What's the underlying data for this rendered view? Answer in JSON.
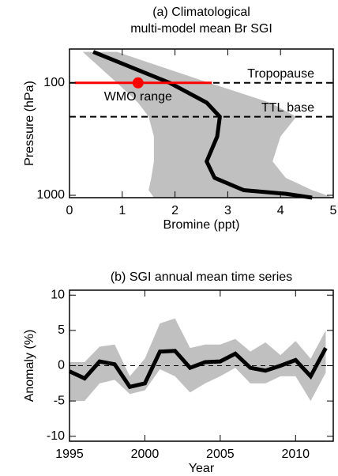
{
  "chart_data": [
    {
      "type": "profile",
      "title": [
        "(a) Climatological",
        "multi-model mean Br SGI"
      ],
      "x_label": "Bromine (ppt)",
      "y_label": "Pressure (hPa)",
      "xlim": [
        0,
        5
      ],
      "xticks": [
        0,
        1,
        2,
        3,
        4,
        5
      ],
      "ylim": [
        50,
        1050
      ],
      "yticks": [
        100,
        1000
      ],
      "log_y": true,
      "y_inverted": true,
      "pressure": [
        53,
        100,
        150,
        200,
        300,
        500,
        700,
        900,
        970,
        1050
      ],
      "values": [
        0.45,
        1.9,
        2.6,
        2.85,
        2.8,
        2.6,
        2.75,
        3.3,
        4.1,
        4.6
      ],
      "color": "#000000",
      "band": {
        "lower": [
          0.25,
          0.9,
          1.3,
          1.5,
          1.6,
          1.6,
          1.55,
          1.5,
          1.55,
          1.6
        ],
        "upper": [
          0.9,
          2.65,
          3.8,
          4.3,
          4.0,
          3.85,
          4.1,
          4.6,
          4.8,
          5.0
        ],
        "color": "#c0c0c0"
      },
      "reference_lines": [
        {
          "label": "Tropopause",
          "value": 100
        },
        {
          "label": "TTL base",
          "value": 200
        }
      ],
      "wmo": {
        "label": "WMO range",
        "range": [
          0.1,
          2.7
        ],
        "value": 1.3,
        "pressure": 100,
        "color": "#ff0000"
      }
    },
    {
      "type": "line",
      "title": "(b) SGI annual mean time series",
      "x_label": "Year",
      "y_label": "Anomaly (%)",
      "xlim": [
        1995,
        2012.5
      ],
      "xticks": [
        1995,
        2000,
        2005,
        2010
      ],
      "ylim": [
        -10.7,
        10.7
      ],
      "yticks": [
        -10,
        -5,
        0,
        5,
        10
      ],
      "zero_line": 0,
      "x": [
        1995,
        1996,
        1997,
        1998,
        1999,
        2000,
        2001,
        2002,
        2003,
        2004,
        2005,
        2006,
        2007,
        2008,
        2009,
        2010,
        2011,
        2012
      ],
      "values": [
        -0.8,
        -1.8,
        0.6,
        0.2,
        -3.0,
        -2.5,
        2.0,
        2.1,
        -0.3,
        0.5,
        0.6,
        1.7,
        -0.3,
        -0.7,
        0.0,
        0.8,
        -1.5,
        2.5
      ],
      "color": "#000000",
      "band": {
        "lower": [
          -5.0,
          -5.0,
          -2.5,
          -2.0,
          -4.0,
          -3.5,
          -0.5,
          -1.5,
          -3.8,
          -2.5,
          -1.5,
          -0.3,
          -2.5,
          -2.5,
          -1.5,
          -1.5,
          -5.0,
          -1.0
        ],
        "upper": [
          0.5,
          0.5,
          2.7,
          3.0,
          -1.5,
          1.0,
          6.0,
          6.7,
          2.5,
          3.0,
          3.0,
          3.8,
          2.0,
          3.3,
          1.5,
          3.5,
          1.0,
          5.0
        ],
        "color": "#c0c0c0"
      }
    }
  ]
}
